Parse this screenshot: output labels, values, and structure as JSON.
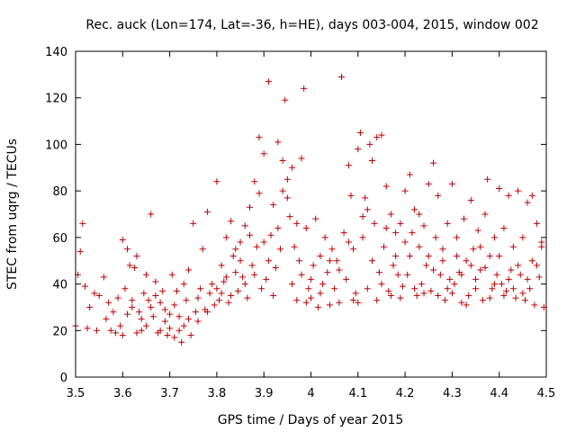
{
  "chart_data": {
    "type": "scatter",
    "title": "Rec. auck (Lon=174, Lat=-36, h=HE), days 003-004, 2015, window 002",
    "xlabel": "GPS time / Days of year 2015",
    "ylabel": "STEC from uqrg / TECUs",
    "xlim": [
      3.5,
      4.5
    ],
    "ylim": [
      0,
      140
    ],
    "xticks": [
      3.5,
      3.6,
      3.7,
      3.8,
      3.9,
      4.0,
      4.1,
      4.2,
      4.3,
      4.4,
      4.5
    ],
    "xtick_labels": [
      "3.5",
      "3.6",
      "3.7",
      "3.8",
      "3.9",
      "4",
      "4.1",
      "4.2",
      "4.3",
      "4.4",
      "4.5"
    ],
    "yticks": [
      0,
      20,
      40,
      60,
      80,
      100,
      120,
      140
    ],
    "ytick_labels": [
      "0",
      "20",
      "40",
      "60",
      "80",
      "100",
      "120",
      "140"
    ],
    "marker": "+",
    "color": "#c00000",
    "grid": false,
    "series": [
      {
        "name": "STEC",
        "points": [
          [
            3.5,
            22
          ],
          [
            3.505,
            44
          ],
          [
            3.51,
            54
          ],
          [
            3.515,
            66
          ],
          [
            3.52,
            39
          ],
          [
            3.525,
            21
          ],
          [
            3.53,
            30
          ],
          [
            3.54,
            36
          ],
          [
            3.545,
            20
          ],
          [
            3.55,
            35
          ],
          [
            3.56,
            43
          ],
          [
            3.565,
            25
          ],
          [
            3.57,
            32
          ],
          [
            3.575,
            20
          ],
          [
            3.58,
            28
          ],
          [
            3.585,
            19
          ],
          [
            3.59,
            34
          ],
          [
            3.595,
            22
          ],
          [
            3.6,
            59
          ],
          [
            3.605,
            38
          ],
          [
            3.61,
            55
          ],
          [
            3.615,
            48
          ],
          [
            3.62,
            30
          ],
          [
            3.625,
            47
          ],
          [
            3.63,
            52
          ],
          [
            3.635,
            28
          ],
          [
            3.64,
            20
          ],
          [
            3.645,
            36
          ],
          [
            3.65,
            44
          ],
          [
            3.655,
            33
          ],
          [
            3.66,
            70
          ],
          [
            3.665,
            26
          ],
          [
            3.67,
            41
          ],
          [
            3.675,
            19
          ],
          [
            3.68,
            32
          ],
          [
            3.685,
            37
          ],
          [
            3.69,
            24
          ],
          [
            3.695,
            18
          ],
          [
            3.6,
            18
          ],
          [
            3.61,
            27
          ],
          [
            3.62,
            33
          ],
          [
            3.63,
            19
          ],
          [
            3.64,
            25
          ],
          [
            3.65,
            22
          ],
          [
            3.66,
            30
          ],
          [
            3.67,
            35
          ],
          [
            3.68,
            20
          ],
          [
            3.69,
            29
          ],
          [
            3.7,
            21
          ],
          [
            3.705,
            44
          ],
          [
            3.71,
            17
          ],
          [
            3.715,
            37
          ],
          [
            3.72,
            26
          ],
          [
            3.725,
            15
          ],
          [
            3.73,
            22
          ],
          [
            3.735,
            33
          ],
          [
            3.74,
            46
          ],
          [
            3.745,
            18
          ],
          [
            3.75,
            66
          ],
          [
            3.755,
            28
          ],
          [
            3.76,
            24
          ],
          [
            3.765,
            38
          ],
          [
            3.77,
            55
          ],
          [
            3.775,
            29
          ],
          [
            3.78,
            71
          ],
          [
            3.785,
            36
          ],
          [
            3.79,
            40
          ],
          [
            3.795,
            31
          ],
          [
            3.7,
            27
          ],
          [
            3.71,
            31
          ],
          [
            3.72,
            20
          ],
          [
            3.73,
            40
          ],
          [
            3.74,
            25
          ],
          [
            3.76,
            34
          ],
          [
            3.78,
            28
          ],
          [
            3.8,
            84
          ],
          [
            3.805,
            33
          ],
          [
            3.81,
            48
          ],
          [
            3.815,
            41
          ],
          [
            3.82,
            60
          ],
          [
            3.825,
            32
          ],
          [
            3.83,
            67
          ],
          [
            3.835,
            52
          ],
          [
            3.84,
            45
          ],
          [
            3.845,
            37
          ],
          [
            3.85,
            58
          ],
          [
            3.855,
            43
          ],
          [
            3.86,
            65
          ],
          [
            3.865,
            34
          ],
          [
            3.87,
            73
          ],
          [
            3.875,
            48
          ],
          [
            3.88,
            84
          ],
          [
            3.885,
            56
          ],
          [
            3.89,
            103
          ],
          [
            3.895,
            38
          ],
          [
            3.8,
            38
          ],
          [
            3.81,
            36
          ],
          [
            3.82,
            43
          ],
          [
            3.83,
            35
          ],
          [
            3.84,
            55
          ],
          [
            3.85,
            50
          ],
          [
            3.86,
            40
          ],
          [
            3.87,
            61
          ],
          [
            3.88,
            44
          ],
          [
            3.89,
            79
          ],
          [
            3.9,
            96
          ],
          [
            3.905,
            42
          ],
          [
            3.91,
            127
          ],
          [
            3.915,
            61
          ],
          [
            3.92,
            35
          ],
          [
            3.925,
            47
          ],
          [
            3.93,
            101
          ],
          [
            3.935,
            55
          ],
          [
            3.94,
            93
          ],
          [
            3.945,
            119
          ],
          [
            3.95,
            85
          ],
          [
            3.955,
            69
          ],
          [
            3.96,
            90
          ],
          [
            3.965,
            56
          ],
          [
            3.97,
            33
          ],
          [
            3.975,
            50
          ],
          [
            3.98,
            94
          ],
          [
            3.985,
            124
          ],
          [
            3.99,
            64
          ],
          [
            3.995,
            38
          ],
          [
            3.9,
            58
          ],
          [
            3.91,
            50
          ],
          [
            3.92,
            74
          ],
          [
            3.93,
            64
          ],
          [
            3.94,
            80
          ],
          [
            3.95,
            77
          ],
          [
            3.96,
            40
          ],
          [
            3.97,
            66
          ],
          [
            3.98,
            44
          ],
          [
            3.99,
            32
          ],
          [
            4.0,
            34
          ],
          [
            4.005,
            48
          ],
          [
            4.01,
            68
          ],
          [
            4.015,
            30
          ],
          [
            4.02,
            52
          ],
          [
            4.025,
            40
          ],
          [
            4.03,
            60
          ],
          [
            4.035,
            45
          ],
          [
            4.04,
            31
          ],
          [
            4.045,
            55
          ],
          [
            4.05,
            38
          ],
          [
            4.055,
            50
          ],
          [
            4.06,
            32
          ],
          [
            4.065,
            129
          ],
          [
            4.07,
            62
          ],
          [
            4.075,
            42
          ],
          [
            4.08,
            91
          ],
          [
            4.085,
            78
          ],
          [
            4.09,
            55
          ],
          [
            4.095,
            36
          ],
          [
            4.0,
            42
          ],
          [
            4.02,
            36
          ],
          [
            4.04,
            50
          ],
          [
            4.06,
            46
          ],
          [
            4.08,
            58
          ],
          [
            4.09,
            33
          ],
          [
            4.1,
            98
          ],
          [
            4.105,
            105
          ],
          [
            4.11,
            69
          ],
          [
            4.115,
            77
          ],
          [
            4.12,
            38
          ],
          [
            4.125,
            100
          ],
          [
            4.13,
            93
          ],
          [
            4.135,
            66
          ],
          [
            4.14,
            103
          ],
          [
            4.145,
            45
          ],
          [
            4.15,
            104
          ],
          [
            4.155,
            56
          ],
          [
            4.16,
            82
          ],
          [
            4.165,
            37
          ],
          [
            4.17,
            70
          ],
          [
            4.175,
            48
          ],
          [
            4.18,
            62
          ],
          [
            4.185,
            44
          ],
          [
            4.19,
            66
          ],
          [
            4.195,
            39
          ],
          [
            4.1,
            32
          ],
          [
            4.11,
            60
          ],
          [
            4.12,
            72
          ],
          [
            4.13,
            50
          ],
          [
            4.14,
            33
          ],
          [
            4.15,
            40
          ],
          [
            4.16,
            64
          ],
          [
            4.17,
            35
          ],
          [
            4.18,
            52
          ],
          [
            4.19,
            34
          ],
          [
            4.2,
            80
          ],
          [
            4.205,
            44
          ],
          [
            4.21,
            87
          ],
          [
            4.215,
            62
          ],
          [
            4.22,
            72
          ],
          [
            4.225,
            35
          ],
          [
            4.23,
            56
          ],
          [
            4.235,
            40
          ],
          [
            4.24,
            65
          ],
          [
            4.245,
            48
          ],
          [
            4.25,
            83
          ],
          [
            4.255,
            37
          ],
          [
            4.26,
            92
          ],
          [
            4.265,
            60
          ],
          [
            4.27,
            78
          ],
          [
            4.275,
            44
          ],
          [
            4.28,
            55
          ],
          [
            4.285,
            33
          ],
          [
            4.29,
            66
          ],
          [
            4.295,
            42
          ],
          [
            4.2,
            58
          ],
          [
            4.21,
            52
          ],
          [
            4.22,
            38
          ],
          [
            4.23,
            70
          ],
          [
            4.24,
            36
          ],
          [
            4.25,
            52
          ],
          [
            4.26,
            46
          ],
          [
            4.27,
            35
          ],
          [
            4.28,
            50
          ],
          [
            4.29,
            38
          ],
          [
            4.3,
            83
          ],
          [
            4.305,
            40
          ],
          [
            4.31,
            60
          ],
          [
            4.315,
            45
          ],
          [
            4.32,
            32
          ],
          [
            4.325,
            68
          ],
          [
            4.33,
            50
          ],
          [
            4.335,
            35
          ],
          [
            4.34,
            76
          ],
          [
            4.345,
            55
          ],
          [
            4.35,
            38
          ],
          [
            4.355,
            63
          ],
          [
            4.36,
            46
          ],
          [
            4.365,
            33
          ],
          [
            4.37,
            70
          ],
          [
            4.375,
            85
          ],
          [
            4.38,
            52
          ],
          [
            4.385,
            38
          ],
          [
            4.39,
            60
          ],
          [
            4.395,
            44
          ],
          [
            4.3,
            36
          ],
          [
            4.31,
            52
          ],
          [
            4.32,
            44
          ],
          [
            4.33,
            31
          ],
          [
            4.34,
            48
          ],
          [
            4.35,
            42
          ],
          [
            4.36,
            56
          ],
          [
            4.37,
            47
          ],
          [
            4.38,
            34
          ],
          [
            4.39,
            40
          ],
          [
            4.4,
            81
          ],
          [
            4.405,
            40
          ],
          [
            4.41,
            64
          ],
          [
            4.415,
            37
          ],
          [
            4.42,
            78
          ],
          [
            4.425,
            46
          ],
          [
            4.43,
            56
          ],
          [
            4.435,
            34
          ],
          [
            4.44,
            80
          ],
          [
            4.445,
            44
          ],
          [
            4.45,
            60
          ],
          [
            4.455,
            33
          ],
          [
            4.46,
            75
          ],
          [
            4.465,
            38
          ],
          [
            4.47,
            50
          ],
          [
            4.475,
            31
          ],
          [
            4.48,
            66
          ],
          [
            4.485,
            43
          ],
          [
            4.49,
            56
          ],
          [
            4.495,
            30
          ],
          [
            4.4,
            52
          ],
          [
            4.41,
            35
          ],
          [
            4.42,
            42
          ],
          [
            4.43,
            38
          ],
          [
            4.44,
            48
          ],
          [
            4.45,
            36
          ],
          [
            4.46,
            42
          ],
          [
            4.47,
            78
          ],
          [
            4.48,
            48
          ],
          [
            4.49,
            58
          ]
        ]
      }
    ]
  }
}
